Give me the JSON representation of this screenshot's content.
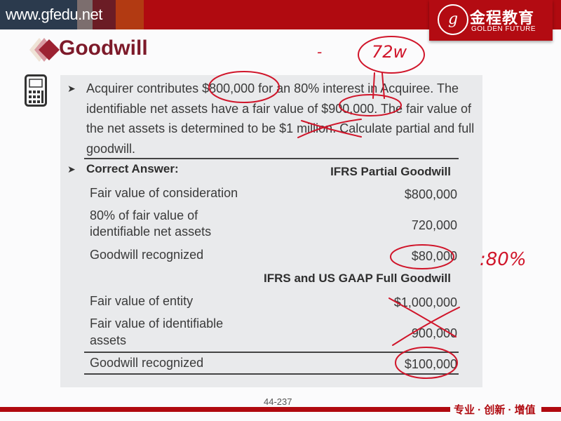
{
  "header": {
    "site": "www.gfedu.net",
    "logo_cn": "金程教育",
    "logo_en": "GOLDEN FUTURE",
    "logo_seal": "g"
  },
  "slide": {
    "title": "Goodwill",
    "question_lines": [
      "Acquirer contributes $800,000 for an 80% interest in Acquiree. The",
      "identifiable net assets have a fair value of $900,000. The fair value of",
      "the net assets is determined to be $1 million. Calculate partial and full",
      "goodwill."
    ],
    "answer_label": "Correct Answer:",
    "partial": {
      "heading": "IFRS Partial Goodwill",
      "rows": [
        {
          "label": [
            "Fair value of consideration"
          ],
          "value": "$800,000"
        },
        {
          "label": [
            "80% of fair value of",
            "identifiable net assets"
          ],
          "value": "720,000"
        },
        {
          "label": [
            "Goodwill recognized"
          ],
          "value": "$80,000"
        }
      ]
    },
    "full": {
      "heading": "IFRS and US GAAP Full Goodwill",
      "rows": [
        {
          "label": [
            "Fair value of entity"
          ],
          "value": "$1,000,000"
        },
        {
          "label": [
            "Fair value of identifiable",
            "assets"
          ],
          "value": "900,000"
        },
        {
          "label": [
            "Goodwill recognized"
          ],
          "value": "$100,000"
        }
      ]
    },
    "page_number": "44-237"
  },
  "annotations": {
    "dash": "-",
    "note_top": "72w",
    "note_right": ":80%"
  },
  "footer": {
    "slogan": "专业 · 创新 · 增值"
  },
  "colors": {
    "brand_red": "#b00a10",
    "title": "#7d1a2a",
    "ink": "#d0152a"
  }
}
